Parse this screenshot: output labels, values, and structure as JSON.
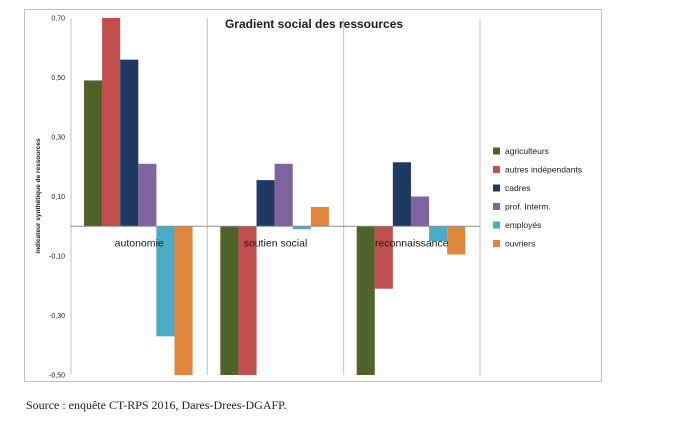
{
  "chart_data": {
    "type": "bar",
    "title": "Gradient social des ressources",
    "ylabel": "indicateur synthétique de ressources",
    "xlabel": "",
    "ylim": [
      -0.5,
      0.7
    ],
    "yticks": [
      "0,70",
      "0,50",
      "0,30",
      "0,10",
      "-0,10",
      "-0,30",
      "-0,50"
    ],
    "ytick_values": [
      0.7,
      0.5,
      0.3,
      0.1,
      -0.1,
      -0.3,
      -0.5
    ],
    "categories": [
      "autonomie",
      "soutien social",
      "reconnaissance"
    ],
    "series": [
      {
        "name": "agriculteurs",
        "color": "#4f6228",
        "values": [
          0.49,
          -0.5,
          -0.5
        ]
      },
      {
        "name": "autres indépendants",
        "color": "#c0504d",
        "values": [
          0.7,
          -0.5,
          -0.21
        ]
      },
      {
        "name": "cadres",
        "color": "#1f3864",
        "values": [
          0.56,
          0.155,
          0.215
        ]
      },
      {
        "name": "prof. Interm.",
        "color": "#8064a2",
        "values": [
          0.21,
          0.21,
          0.1
        ]
      },
      {
        "name": "employés",
        "color": "#4bacc6",
        "values": [
          -0.37,
          -0.01,
          -0.05
        ]
      },
      {
        "name": "ouvriers",
        "color": "#e0873d",
        "values": [
          -0.5,
          0.065,
          -0.095
        ]
      }
    ],
    "legend_position": "right",
    "grid": false
  },
  "source": "Source : enquête CT-RPS 2016, Dares-Drees-DGAFP."
}
